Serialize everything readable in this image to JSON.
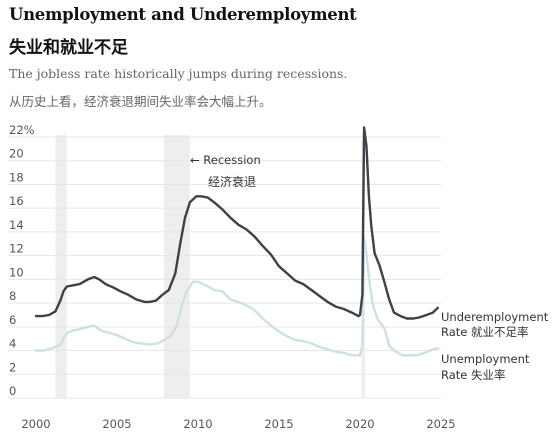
{
  "header": {
    "title_en": "Unemployment and Underemployment",
    "title_zh": "失业和就业不足",
    "subtitle_en": "The jobless rate historically jumps during recessions.",
    "subtitle_zh": "从历史上看，经济衰退期间失业率会大幅上升。"
  },
  "colors": {
    "underemployment": "#3b4346",
    "unemployment": "#cde0e4",
    "recession_band": "#eeeeee",
    "grid": "#e6e6e6",
    "axis_text": "#555555"
  },
  "chart_data": {
    "type": "line",
    "ylim": [
      0,
      22
    ],
    "xlim": [
      1999.6,
      2025
    ],
    "y_ticks": [
      0,
      2,
      4,
      6,
      8,
      10,
      12,
      14,
      16,
      18,
      20,
      22
    ],
    "y_tick_labels": [
      "0",
      "2",
      "4",
      "6",
      "8",
      "10",
      "12",
      "14",
      "16",
      "18",
      "20",
      "22%"
    ],
    "x_ticks": [
      2000,
      2005,
      2010,
      2015,
      2020,
      2025
    ],
    "x_tick_labels": [
      "2000",
      "2005",
      "2010",
      "2015",
      "2020",
      "2025"
    ],
    "grid": true,
    "recessions": [
      [
        2001.2,
        2001.9
      ],
      [
        2007.9,
        2009.5
      ],
      [
        2020.1,
        2020.3
      ]
    ],
    "recession_label_en": "← Recession",
    "recession_label_zh": "经济衰退",
    "series": [
      {
        "name": "Underemployment Rate",
        "name_zh": "就业不足率",
        "label_line1": "Underemployment",
        "label_line2_en": "Rate",
        "label_line2_zh": "就业不足率",
        "points": [
          [
            2000.0,
            6.9
          ],
          [
            2000.4,
            6.9
          ],
          [
            2000.8,
            7.0
          ],
          [
            2001.2,
            7.3
          ],
          [
            2001.5,
            8.2
          ],
          [
            2001.7,
            9.0
          ],
          [
            2001.9,
            9.4
          ],
          [
            2002.3,
            9.5
          ],
          [
            2002.7,
            9.6
          ],
          [
            2003.2,
            10.0
          ],
          [
            2003.6,
            10.2
          ],
          [
            2003.9,
            10.0
          ],
          [
            2004.3,
            9.6
          ],
          [
            2004.8,
            9.3
          ],
          [
            2005.2,
            9.0
          ],
          [
            2005.7,
            8.7
          ],
          [
            2006.2,
            8.3
          ],
          [
            2006.7,
            8.1
          ],
          [
            2007.0,
            8.1
          ],
          [
            2007.4,
            8.2
          ],
          [
            2007.8,
            8.7
          ],
          [
            2008.2,
            9.1
          ],
          [
            2008.6,
            10.5
          ],
          [
            2008.9,
            13.0
          ],
          [
            2009.2,
            15.2
          ],
          [
            2009.5,
            16.5
          ],
          [
            2009.9,
            17.0
          ],
          [
            2010.2,
            17.0
          ],
          [
            2010.6,
            16.9
          ],
          [
            2011.0,
            16.5
          ],
          [
            2011.5,
            15.9
          ],
          [
            2012.0,
            15.2
          ],
          [
            2012.5,
            14.6
          ],
          [
            2013.0,
            14.2
          ],
          [
            2013.5,
            13.6
          ],
          [
            2014.0,
            12.8
          ],
          [
            2014.5,
            12.1
          ],
          [
            2015.0,
            11.1
          ],
          [
            2015.5,
            10.5
          ],
          [
            2016.0,
            9.9
          ],
          [
            2016.5,
            9.6
          ],
          [
            2017.0,
            9.1
          ],
          [
            2017.5,
            8.6
          ],
          [
            2018.0,
            8.1
          ],
          [
            2018.5,
            7.7
          ],
          [
            2019.0,
            7.5
          ],
          [
            2019.5,
            7.2
          ],
          [
            2019.9,
            6.9
          ],
          [
            2020.0,
            7.0
          ],
          [
            2020.15,
            8.7
          ],
          [
            2020.25,
            22.8
          ],
          [
            2020.4,
            21.2
          ],
          [
            2020.55,
            17.0
          ],
          [
            2020.7,
            14.5
          ],
          [
            2020.9,
            12.2
          ],
          [
            2021.2,
            11.2
          ],
          [
            2021.5,
            9.8
          ],
          [
            2021.8,
            8.3
          ],
          [
            2022.1,
            7.2
          ],
          [
            2022.5,
            6.9
          ],
          [
            2022.9,
            6.7
          ],
          [
            2023.3,
            6.7
          ],
          [
            2023.7,
            6.8
          ],
          [
            2024.1,
            7.0
          ],
          [
            2024.5,
            7.2
          ],
          [
            2024.8,
            7.6
          ]
        ]
      },
      {
        "name": "Unemployment Rate",
        "name_zh": "失业率",
        "label_line1": "Unemployment",
        "label_line2_en": "Rate",
        "label_line2_zh": "失业率",
        "points": [
          [
            2000.0,
            4.0
          ],
          [
            2000.5,
            4.0
          ],
          [
            2001.0,
            4.2
          ],
          [
            2001.5,
            4.5
          ],
          [
            2001.9,
            5.5
          ],
          [
            2002.3,
            5.7
          ],
          [
            2002.7,
            5.8
          ],
          [
            2003.2,
            6.0
          ],
          [
            2003.6,
            6.1
          ],
          [
            2004.0,
            5.7
          ],
          [
            2004.5,
            5.5
          ],
          [
            2005.0,
            5.3
          ],
          [
            2005.5,
            5.0
          ],
          [
            2006.0,
            4.7
          ],
          [
            2006.5,
            4.6
          ],
          [
            2007.0,
            4.5
          ],
          [
            2007.5,
            4.6
          ],
          [
            2007.9,
            4.9
          ],
          [
            2008.3,
            5.2
          ],
          [
            2008.7,
            6.1
          ],
          [
            2009.0,
            7.8
          ],
          [
            2009.3,
            9.0
          ],
          [
            2009.7,
            9.8
          ],
          [
            2010.0,
            9.8
          ],
          [
            2010.5,
            9.5
          ],
          [
            2011.0,
            9.1
          ],
          [
            2011.5,
            9.0
          ],
          [
            2012.0,
            8.3
          ],
          [
            2012.5,
            8.1
          ],
          [
            2013.0,
            7.8
          ],
          [
            2013.5,
            7.4
          ],
          [
            2014.0,
            6.7
          ],
          [
            2014.5,
            6.1
          ],
          [
            2015.0,
            5.6
          ],
          [
            2015.5,
            5.2
          ],
          [
            2016.0,
            4.9
          ],
          [
            2016.5,
            4.8
          ],
          [
            2017.0,
            4.6
          ],
          [
            2017.5,
            4.3
          ],
          [
            2018.0,
            4.1
          ],
          [
            2018.5,
            3.9
          ],
          [
            2019.0,
            3.8
          ],
          [
            2019.5,
            3.6
          ],
          [
            2020.0,
            3.6
          ],
          [
            2020.15,
            4.4
          ],
          [
            2020.25,
            13.6
          ],
          [
            2020.45,
            11.5
          ],
          [
            2020.6,
            9.6
          ],
          [
            2020.8,
            7.8
          ],
          [
            2021.1,
            6.6
          ],
          [
            2021.5,
            5.9
          ],
          [
            2021.8,
            4.4
          ],
          [
            2022.2,
            3.9
          ],
          [
            2022.6,
            3.6
          ],
          [
            2023.0,
            3.6
          ],
          [
            2023.5,
            3.6
          ],
          [
            2024.0,
            3.8
          ],
          [
            2024.5,
            4.1
          ],
          [
            2024.8,
            4.2
          ]
        ]
      }
    ]
  }
}
